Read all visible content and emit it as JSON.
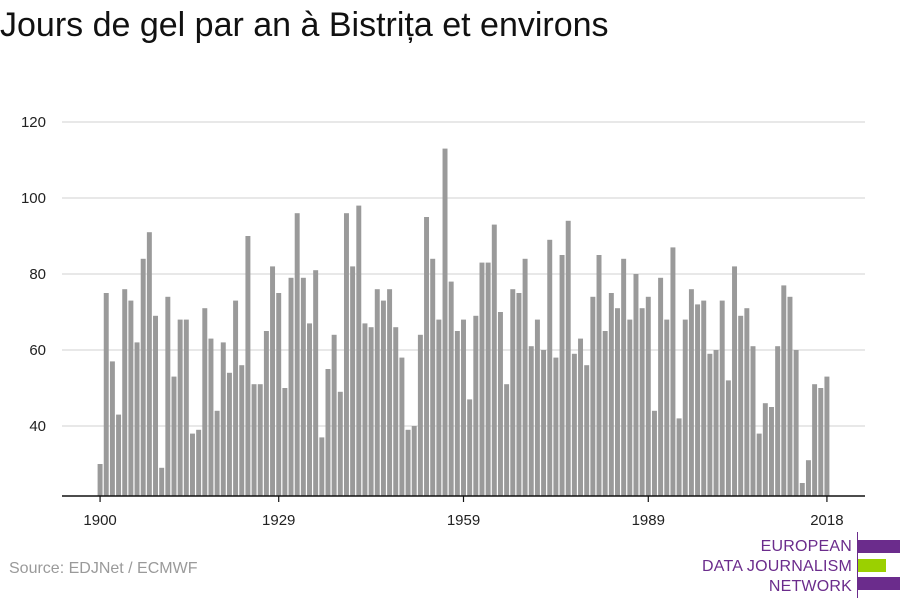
{
  "title": "Jours de gel par an à Bistrița et environs",
  "source": "Source: EDJNet / ECMWF",
  "logo": {
    "lines": [
      "EUROPEAN",
      "DATA JOURNALISM",
      "NETWORK"
    ],
    "colors": {
      "purple": "#6b2c8c",
      "green": "#9bd000"
    }
  },
  "colors": {
    "bar": "#9a9a9a",
    "grid": "#d9d9d9",
    "axis": "#111111"
  },
  "chart_data": {
    "type": "bar",
    "title": "Jours de gel par an à Bistrița et environs",
    "xlabel": "",
    "ylabel": "",
    "x_start": 1900,
    "x_end": 2018,
    "x_ticks": [
      1900,
      1929,
      1959,
      1989,
      2018
    ],
    "y_ticks": [
      40,
      60,
      80,
      100,
      120
    ],
    "ylim": [
      22,
      122
    ],
    "grid": true,
    "values": [
      30,
      75,
      57,
      43,
      76,
      73,
      62,
      84,
      91,
      69,
      29,
      74,
      53,
      68,
      68,
      38,
      39,
      71,
      63,
      44,
      62,
      54,
      73,
      56,
      90,
      51,
      51,
      65,
      82,
      75,
      50,
      79,
      96,
      79,
      67,
      81,
      37,
      55,
      64,
      49,
      96,
      82,
      98,
      67,
      66,
      76,
      73,
      76,
      66,
      58,
      39,
      40,
      64,
      95,
      84,
      68,
      113,
      78,
      65,
      68,
      47,
      69,
      83,
      83,
      93,
      70,
      51,
      76,
      75,
      84,
      61,
      68,
      60,
      89,
      58,
      85,
      94,
      59,
      63,
      56,
      74,
      85,
      65,
      75,
      71,
      84,
      68,
      80,
      71,
      74,
      44,
      79,
      68,
      87,
      42,
      68,
      76,
      72,
      73,
      59,
      60,
      73,
      52,
      82,
      69,
      71,
      61,
      38,
      46,
      45,
      61,
      77,
      74,
      60,
      25,
      31,
      51,
      50,
      53
    ]
  }
}
